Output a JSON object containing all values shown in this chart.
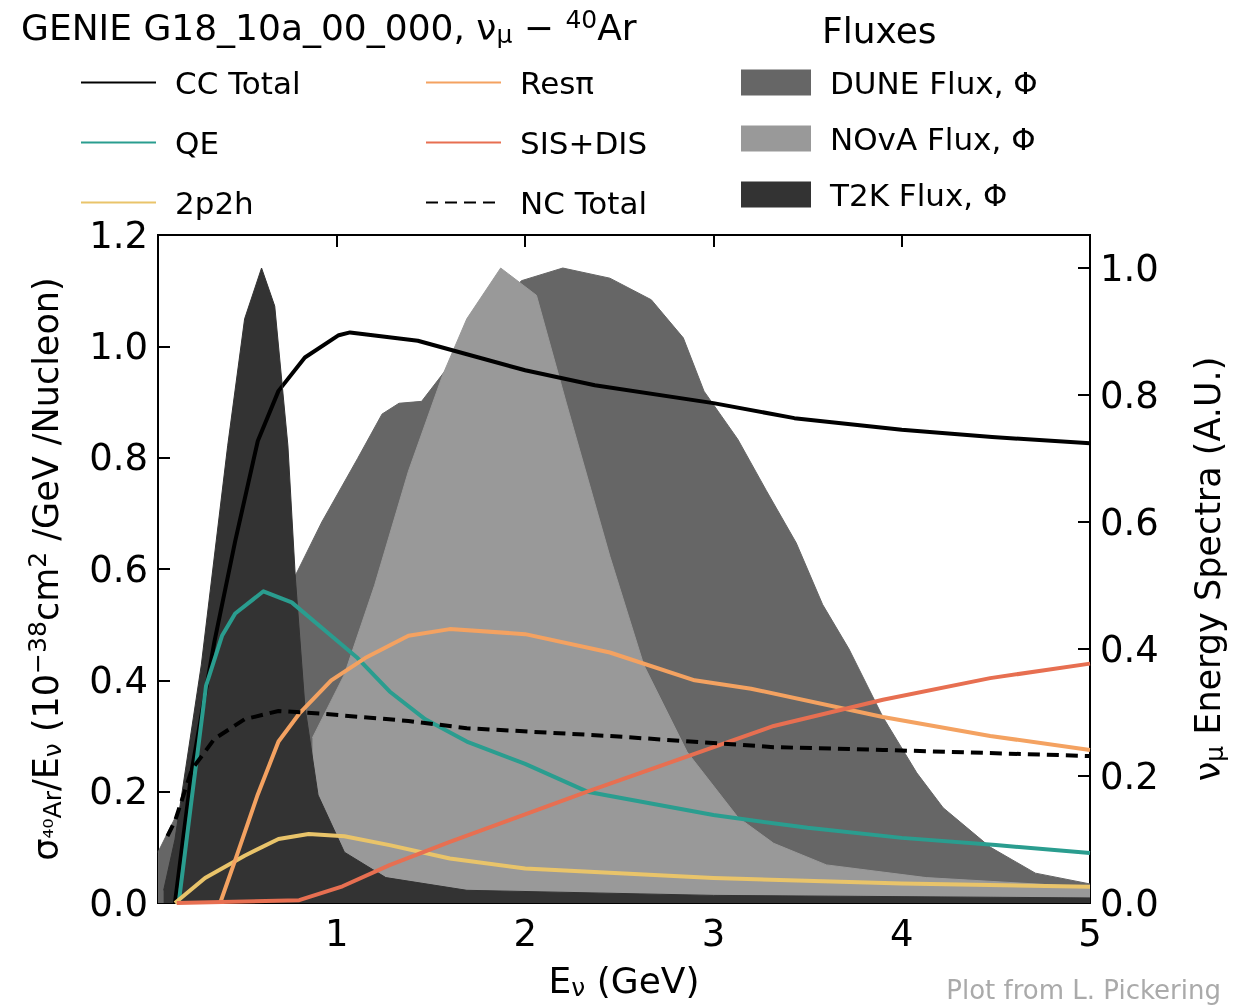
{
  "chart_data": {
    "type": "line",
    "title": "GENIE G18_10a_00_000, ν$_{μ}$ − $^{40}$Ar",
    "xlabel": "E$_{ν}$ (GeV)",
    "ylabel": "σ$_{⁴⁰Ar}$/E$_{ν}$ (10$^{−38}$cm$^{2}$ /GeV /Nucleon)",
    "y2label": "ν$_{μ}$ Energy Spectra (A.U.)",
    "legend_title": "Fluxes",
    "legend": "top",
    "annotations": [
      "Plot from L. Pickering"
    ],
    "xlim": [
      0.05,
      5
    ],
    "xticks": [
      1,
      2,
      3,
      4,
      5
    ],
    "ylim": [
      0,
      1.2
    ],
    "yticks": [
      {
        "value": 0,
        "label": "0.0"
      },
      {
        "value": 0.2,
        "label": "0.2"
      },
      {
        "value": 0.4,
        "label": "0.4"
      },
      {
        "value": 0.6,
        "label": "0.6"
      },
      {
        "value": 0.8,
        "label": "0.8"
      },
      {
        "value": 1.0,
        "label": "1.0"
      },
      {
        "value": 1.2,
        "label": "1.2"
      }
    ],
    "y2lim": [
      0,
      1.052
    ],
    "y2ticks": [
      {
        "value": 0,
        "label": "0.0"
      },
      {
        "value": 0.2,
        "label": "0.2"
      },
      {
        "value": 0.4,
        "label": "0.4"
      },
      {
        "value": 0.6,
        "label": "0.6"
      },
      {
        "value": 0.8,
        "label": "0.8"
      },
      {
        "value": 1.0,
        "label": "1.0"
      }
    ],
    "series": [
      {
        "name": "CC Total",
        "color": "#000000",
        "x": [
          0.14,
          0.23,
          0.35,
          0.46,
          0.58,
          0.69,
          0.83,
          1.01,
          1.07,
          1.43,
          2.0,
          2.37,
          3.0,
          3.43,
          4.0,
          4.48,
          5.0
        ],
        "values": [
          0.0,
          0.24,
          0.47,
          0.65,
          0.83,
          0.92,
          0.98,
          1.02,
          1.025,
          1.01,
          0.957,
          0.93,
          0.898,
          0.871,
          0.85,
          0.837,
          0.826
        ]
      },
      {
        "name": "QE",
        "color": "#2a9d8f",
        "x": [
          0.16,
          0.23,
          0.305,
          0.39,
          0.46,
          0.61,
          0.76,
          0.97,
          1.11,
          1.28,
          1.47,
          1.69,
          2.0,
          2.33,
          3.0,
          3.5,
          4.0,
          4.5,
          5.0
        ],
        "values": [
          0.0,
          0.19,
          0.39,
          0.48,
          0.52,
          0.56,
          0.54,
          0.48,
          0.44,
          0.38,
          0.33,
          0.29,
          0.25,
          0.2,
          0.158,
          0.135,
          0.117,
          0.104,
          0.09
        ]
      },
      {
        "name": "2p2h",
        "color": "#e9c46a",
        "x": [
          0.14,
          0.3,
          0.51,
          0.69,
          0.85,
          1.04,
          1.28,
          1.6,
          2.0,
          3.0,
          4.0,
          5.0
        ],
        "values": [
          0.0,
          0.045,
          0.085,
          0.115,
          0.124,
          0.12,
          0.104,
          0.08,
          0.062,
          0.045,
          0.035,
          0.029
        ]
      },
      {
        "name": "Resπ",
        "color": "#f4a261",
        "x": [
          0.38,
          0.46,
          0.58,
          0.69,
          0.8,
          0.97,
          1.15,
          1.38,
          1.6,
          2.0,
          2.45,
          2.9,
          3.2,
          3.9,
          4.47,
          5.0
        ],
        "values": [
          0.0,
          0.077,
          0.195,
          0.29,
          0.34,
          0.4,
          0.44,
          0.48,
          0.492,
          0.483,
          0.45,
          0.4,
          0.385,
          0.334,
          0.3,
          0.275
        ]
      },
      {
        "name": "SIS+DIS",
        "color": "#e76f51",
        "x": [
          0.15,
          0.8,
          1.03,
          1.28,
          1.6,
          2.33,
          3.32,
          3.9,
          4.47,
          5.0
        ],
        "values": [
          0.0,
          0.005,
          0.03,
          0.068,
          0.11,
          0.2,
          0.318,
          0.365,
          0.404,
          0.43
        ]
      },
      {
        "name": "NC Total",
        "color": "#000000",
        "line_style": "dashed",
        "x": [
          0.1,
          0.14,
          0.23,
          0.35,
          0.51,
          0.69,
          0.92,
          1.38,
          1.69,
          2.45,
          3.32,
          3.9,
          5.0
        ],
        "values": [
          0.12,
          0.147,
          0.24,
          0.295,
          0.33,
          0.345,
          0.34,
          0.327,
          0.314,
          0.3,
          0.28,
          0.275,
          0.264
        ]
      },
      {
        "name": "DUNE Flux, Φ",
        "type": "area",
        "axis": "y2",
        "color": "#666666",
        "x": [
          0.05,
          0.77,
          0.92,
          1.11,
          1.24,
          1.33,
          1.45,
          1.58,
          1.98,
          2.2,
          2.45,
          2.67,
          2.84,
          2.95,
          3.13,
          3.28,
          3.44,
          3.58,
          3.72,
          3.9,
          4.08,
          4.22,
          4.47,
          4.71,
          5.0
        ],
        "values": [
          0.08,
          0.51,
          0.6,
          0.7,
          0.77,
          0.787,
          0.79,
          0.84,
          0.98,
          1.0,
          0.984,
          0.95,
          0.89,
          0.806,
          0.73,
          0.65,
          0.567,
          0.47,
          0.4,
          0.293,
          0.205,
          0.15,
          0.088,
          0.047,
          0.03
        ]
      },
      {
        "name": "NOvA Flux, Φ",
        "type": "area",
        "axis": "y2",
        "color": "#999999",
        "x": [
          0.87,
          1.04,
          1.2,
          1.38,
          1.56,
          1.69,
          1.87,
          2.06,
          2.22,
          2.45,
          2.63,
          2.86,
          3.13,
          3.32,
          3.6,
          4.13,
          5.0
        ],
        "values": [
          0.26,
          0.36,
          0.5,
          0.68,
          0.83,
          0.92,
          1.0,
          0.957,
          0.786,
          0.546,
          0.375,
          0.238,
          0.135,
          0.094,
          0.06,
          0.04,
          0.025
        ]
      },
      {
        "name": "T2K Flux, Φ",
        "type": "area",
        "axis": "y2",
        "color": "#333333",
        "x": [
          0.08,
          0.14,
          0.28,
          0.42,
          0.51,
          0.6,
          0.67,
          0.74,
          0.78,
          0.83,
          0.9,
          1.04,
          1.26,
          1.69,
          3.0,
          5.0
        ],
        "values": [
          0.02,
          0.1,
          0.375,
          0.72,
          0.92,
          1.0,
          0.94,
          0.72,
          0.51,
          0.31,
          0.17,
          0.08,
          0.04,
          0.02,
          0.012,
          0.008
        ]
      }
    ]
  }
}
